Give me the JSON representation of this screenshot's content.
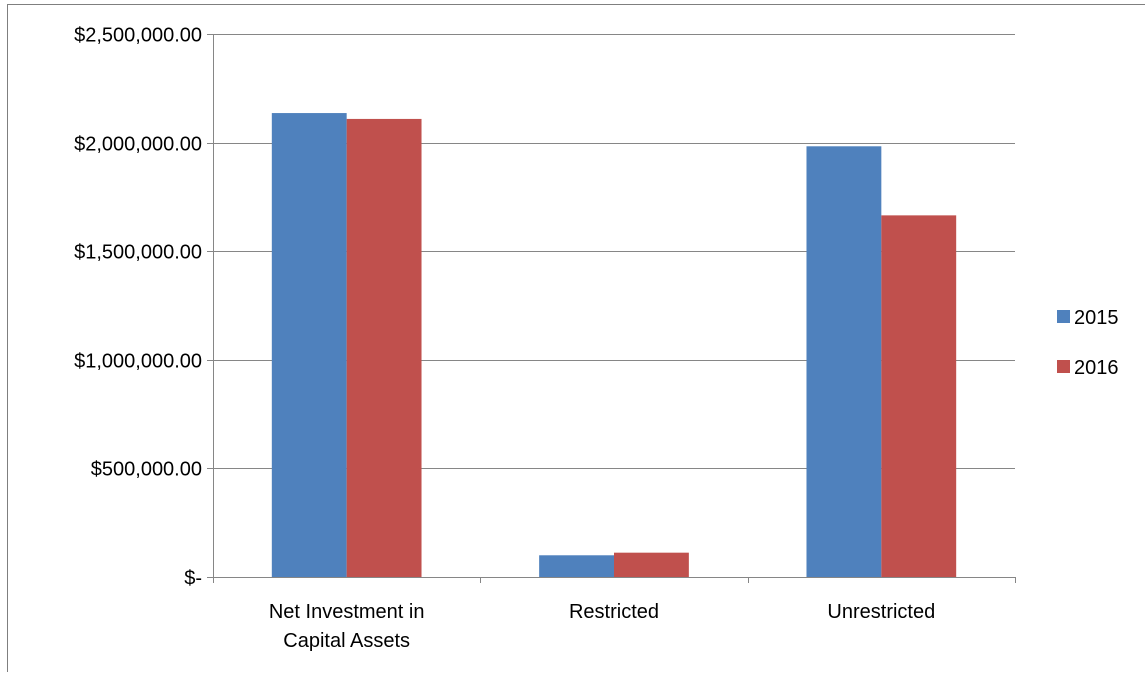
{
  "chart_data": {
    "type": "bar",
    "title": "",
    "xlabel": "",
    "ylabel": "",
    "categories": [
      [
        "Net Investment in",
        "Capital Assets"
      ],
      [
        "Restricted"
      ],
      [
        "Unrestricted"
      ]
    ],
    "series": [
      {
        "name": "2015",
        "color": "#4f81bd",
        "values": [
          2136000,
          100000,
          1983000
        ]
      },
      {
        "name": "2016",
        "color": "#c0504d",
        "values": [
          2109000,
          112000,
          1665000
        ]
      }
    ],
    "ylim": [
      0,
      2500000
    ],
    "yticks": [
      0,
      500000,
      1000000,
      1500000,
      2000000,
      2500000
    ],
    "ytick_labels": [
      "$-",
      "$500,000.00",
      "$1,000,000.00",
      "$1,500,000.00",
      "$2,000,000.00",
      "$2,500,000.00"
    ],
    "grid": true,
    "legend_position": "right"
  }
}
